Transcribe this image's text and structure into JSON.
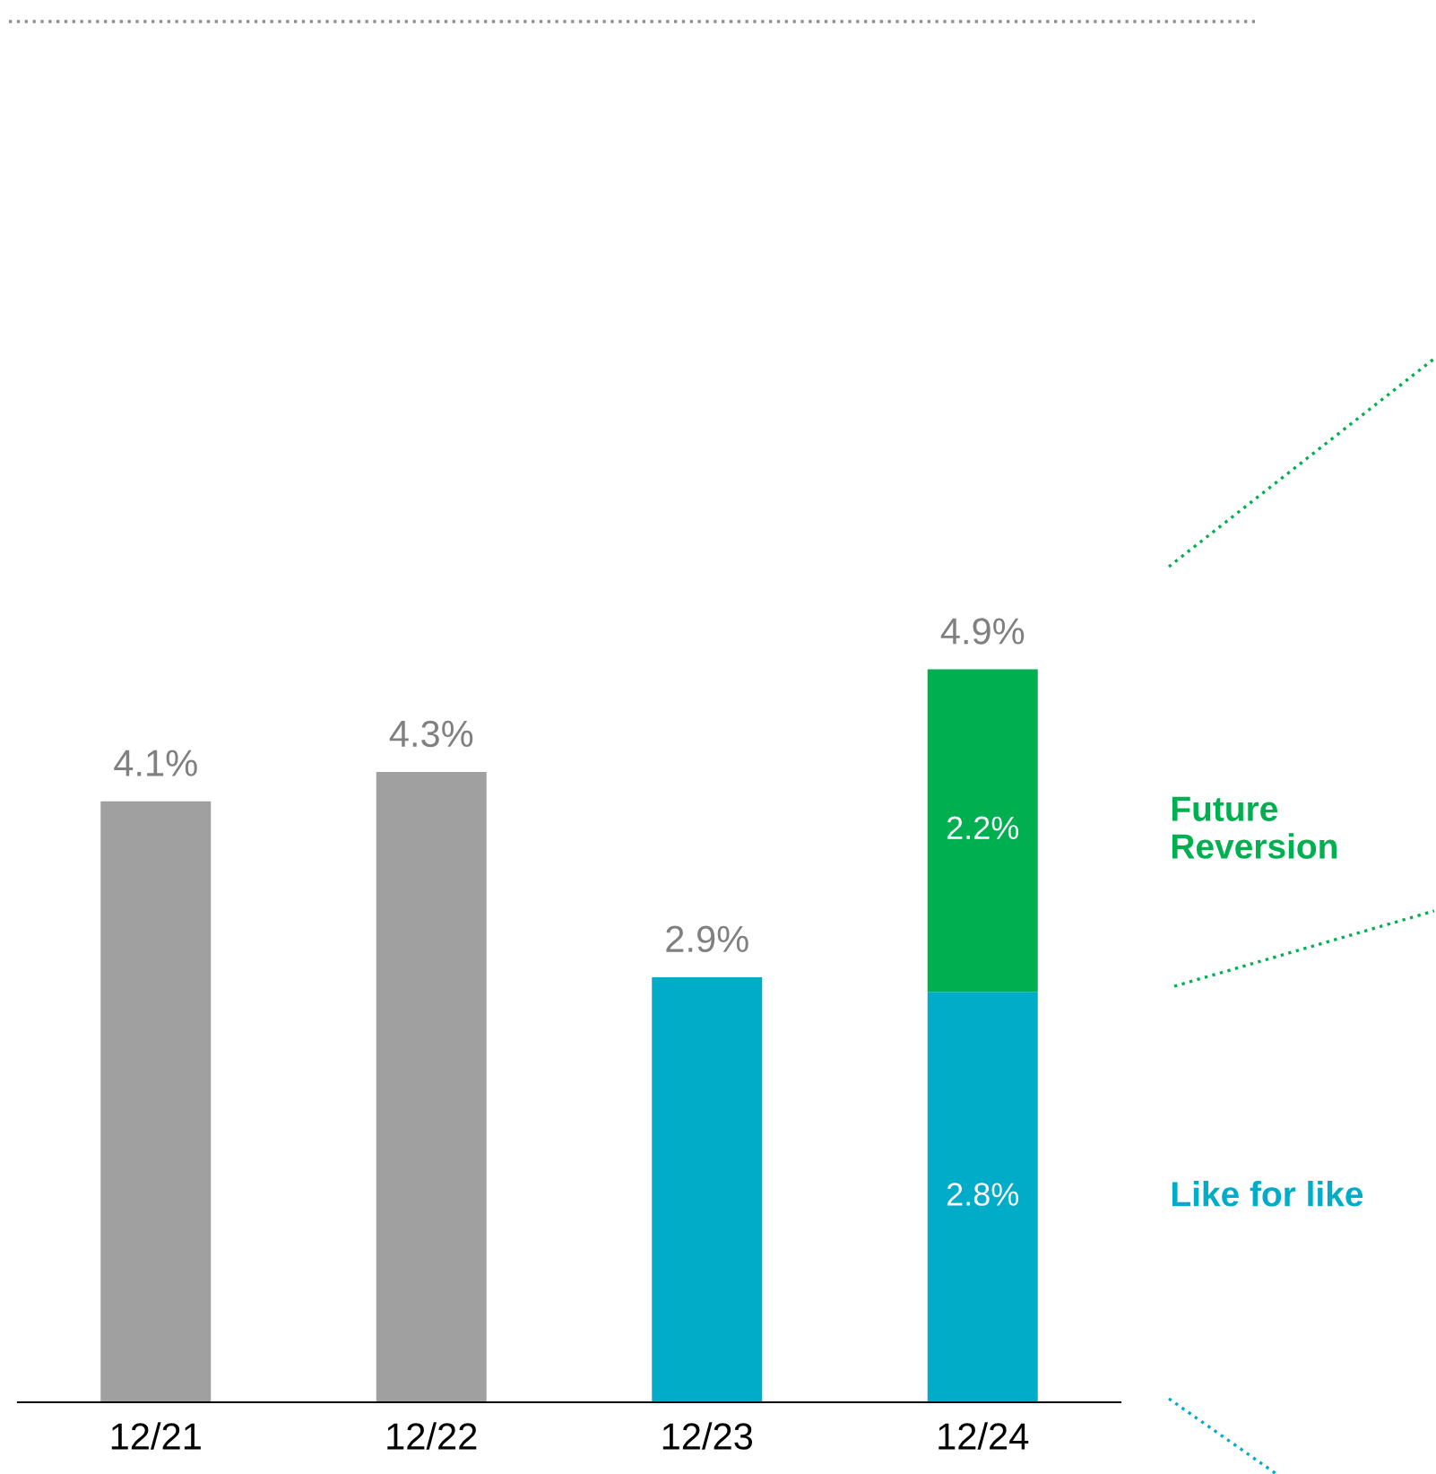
{
  "chart_data": {
    "type": "bar",
    "stacked": true,
    "categories": [
      "12/21",
      "12/22",
      "12/23",
      "12/24"
    ],
    "series": [
      {
        "color": "#a0a0a0",
        "values": [
          4.1,
          4.3,
          null,
          null
        ]
      },
      {
        "name": "Like for like",
        "color": "#00acc8",
        "values": [
          null,
          null,
          2.9,
          2.8
        ],
        "value_labels": [
          null,
          null,
          null,
          "2.8%"
        ]
      },
      {
        "name": "Future Reversion",
        "color": "#00b050",
        "values": [
          null,
          null,
          null,
          2.2
        ],
        "value_labels": [
          null,
          null,
          null,
          "2.2%"
        ]
      }
    ],
    "totals": [
      "4.1%",
      "4.3%",
      "2.9%",
      "4.9%"
    ],
    "legend": false,
    "grid": false
  }
}
